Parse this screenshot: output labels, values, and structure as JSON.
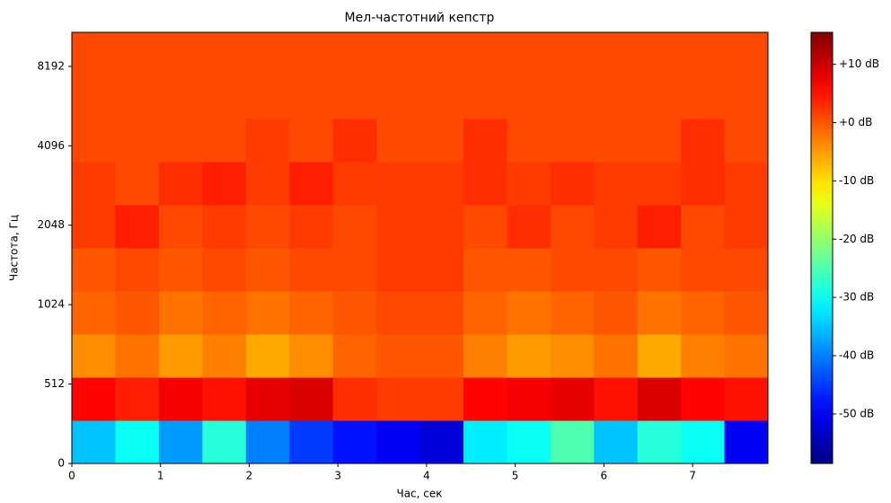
{
  "chart_data": {
    "type": "heatmap",
    "title": "Мел-частотний кепстр",
    "x_label": "Час, сек",
    "y_label": "Частота, Гц",
    "xlim": [
      0,
      7.85
    ],
    "xticks": [
      0,
      1,
      2,
      3,
      4,
      5,
      6,
      7
    ],
    "ylim": [
      0,
      11025
    ],
    "yticks": [
      0,
      512,
      1024,
      2048,
      4096,
      8192
    ],
    "yscale": "symlog",
    "linthresh": 512,
    "colormap": "jet",
    "clim": [
      -58.5,
      15.5
    ],
    "colorbar_ticks": [
      {
        "value": 10,
        "label": "+10 dB"
      },
      {
        "value": 0,
        "label": "+0 dB"
      },
      {
        "value": -10,
        "label": "-10 dB"
      },
      {
        "value": -20,
        "label": "-20 dB"
      },
      {
        "value": -30,
        "label": "-30 dB"
      },
      {
        "value": -40,
        "label": "-40 dB"
      },
      {
        "value": -50,
        "label": "-50 dB"
      }
    ],
    "values": [
      [
        -35,
        -30,
        -38,
        -28,
        -40,
        -45,
        -48,
        -50,
        -52,
        -32,
        -30,
        -25,
        -35,
        -28,
        -30,
        -50
      ],
      [
        6,
        4,
        7,
        5,
        8,
        9,
        3,
        2,
        2,
        6,
        7,
        8,
        5,
        9,
        6,
        5
      ],
      [
        -4,
        -2,
        -5,
        -3,
        -6,
        -4,
        -1,
        0,
        0,
        -3,
        -5,
        -4,
        -2,
        -6,
        -3,
        -2
      ],
      [
        -1,
        0,
        -2,
        -1,
        -2,
        -1,
        0,
        1,
        1,
        -1,
        -2,
        -1,
        0,
        -2,
        -1,
        0
      ],
      [
        0,
        1,
        0,
        1,
        0,
        1,
        1,
        2,
        2,
        0,
        0,
        1,
        1,
        0,
        1,
        1
      ],
      [
        2,
        4,
        1,
        2,
        1,
        2,
        1,
        2,
        2,
        1,
        3,
        1,
        2,
        4,
        1,
        2
      ],
      [
        2,
        1,
        3,
        4,
        2,
        4,
        2,
        2,
        2,
        3,
        2,
        3,
        2,
        2,
        3,
        2
      ],
      [
        1,
        1,
        1,
        1,
        2,
        1,
        3,
        1,
        1,
        3,
        1,
        1,
        1,
        1,
        3,
        1
      ],
      [
        1,
        1,
        1,
        1,
        1,
        1,
        1,
        1,
        1,
        1,
        1,
        1,
        1,
        1,
        1,
        1
      ],
      [
        1,
        1,
        1,
        1,
        1,
        1,
        1,
        1,
        1,
        1,
        1,
        1,
        1,
        1,
        1,
        1
      ]
    ]
  }
}
